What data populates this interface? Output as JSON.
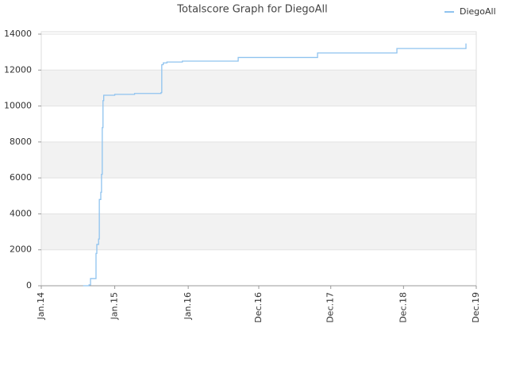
{
  "chart_data": {
    "type": "line",
    "title": "Totalscore Graph for DiegoAll",
    "x": [
      2014.57,
      2014.65,
      2014.67,
      2014.73,
      2014.745,
      2014.756,
      2014.78,
      2014.79,
      2014.81,
      2014.82,
      2014.83,
      2014.84,
      2014.85,
      2015.0,
      2015.27,
      2015.6,
      2015.63,
      2015.64,
      2015.66,
      2015.71,
      2015.92,
      2016.68,
      2017.76,
      2018.84,
      2019.78
    ],
    "series": [
      {
        "name": "DiegoAll",
        "color": "#8fc3ef",
        "values": [
          0,
          50,
          400,
          400,
          1800,
          2300,
          2600,
          4800,
          5200,
          6200,
          8800,
          10300,
          10600,
          10650,
          10700,
          10700,
          10750,
          12300,
          12400,
          12450,
          12500,
          12700,
          12950,
          13200,
          13480
        ]
      }
    ],
    "xlim": [
      2014.0,
      2019.92
    ],
    "xticks": [
      {
        "value": 2014.0,
        "label": "Jan.14"
      },
      {
        "value": 2015.0,
        "label": "Jan.15"
      },
      {
        "value": 2016.0,
        "label": "Jan.16"
      },
      {
        "value": 2016.96,
        "label": "Dec.16"
      },
      {
        "value": 2017.94,
        "label": "Dec.17"
      },
      {
        "value": 2018.93,
        "label": "Dec.18"
      },
      {
        "value": 2019.92,
        "label": "Dec.19"
      }
    ],
    "ylim": [
      0,
      14000
    ],
    "yticks": [
      0,
      2000,
      4000,
      6000,
      8000,
      10000,
      12000,
      14000
    ],
    "grid": true,
    "step": true,
    "legend": "top-right"
  }
}
